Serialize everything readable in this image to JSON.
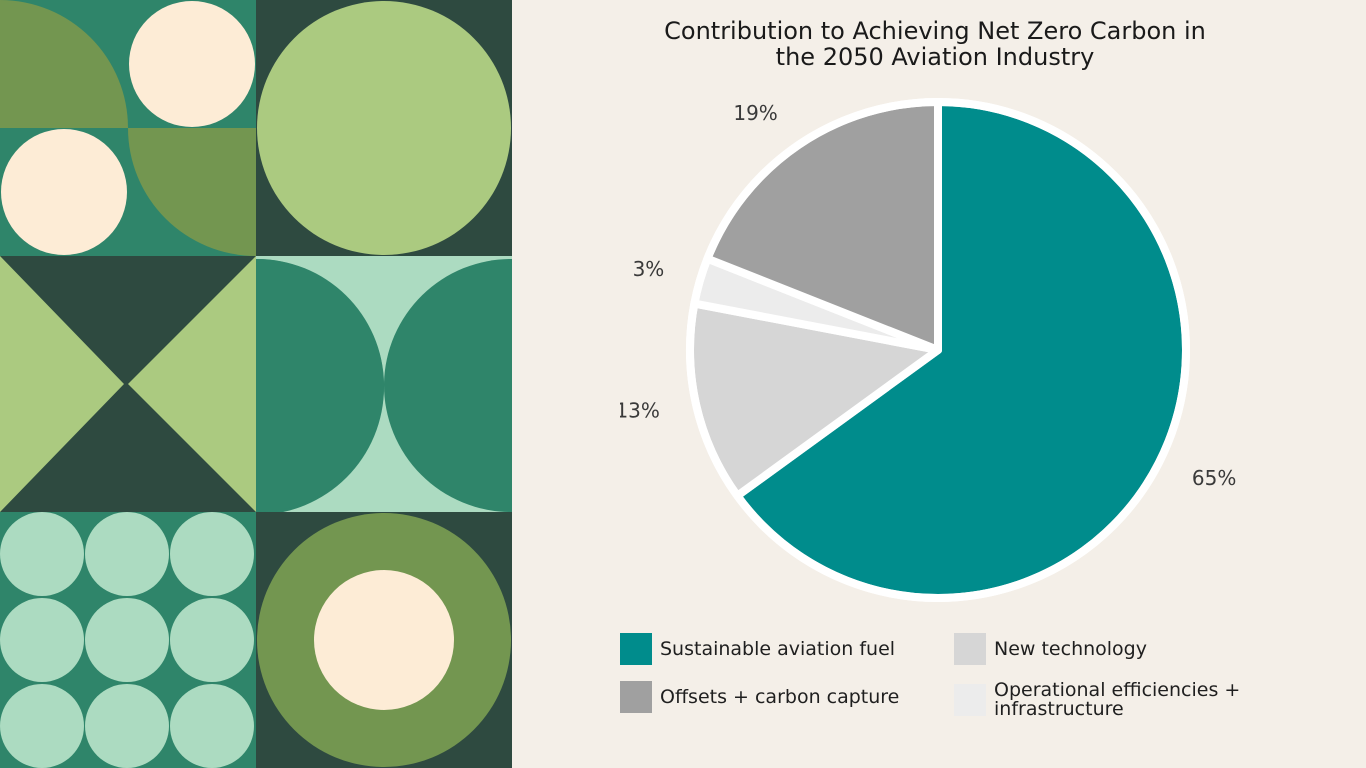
{
  "chart_data": {
    "type": "pie",
    "title": "Contribution to Achieving Net Zero Carbon in the 2050 Aviation Industry",
    "title_lines": [
      "Contribution to Achieving Net Zero Carbon in",
      "the 2050 Aviation Industry"
    ],
    "slices": [
      {
        "name": "Sustainable aviation fuel",
        "value": 65,
        "label": "65%",
        "color": "#008c8c"
      },
      {
        "name": "New technology",
        "value": 13,
        "label": "13%",
        "color": "#d6d6d6"
      },
      {
        "name": "Operational efficiencies + infrastructure",
        "value": 3,
        "label": "3%",
        "color": "#ececec"
      },
      {
        "name": "Offsets + carbon capture",
        "value": 19,
        "label": "19%",
        "color": "#a0a0a0"
      }
    ],
    "legend": [
      {
        "label": "Sustainable aviation fuel",
        "color": "#008c8c"
      },
      {
        "label": "New technology",
        "color": "#d6d6d6"
      },
      {
        "label": "Offsets + carbon capture",
        "color": "#a0a0a0"
      },
      {
        "label": "Operational efficiencies + infrastructure",
        "color": "#ececec"
      }
    ]
  },
  "decor_colors": {
    "dark": "#2e4a40",
    "mid_green": "#2f856a",
    "olive": "#739650",
    "lime": "#abca80",
    "mint": "#acdbc1",
    "cream": "#fdecd6"
  }
}
